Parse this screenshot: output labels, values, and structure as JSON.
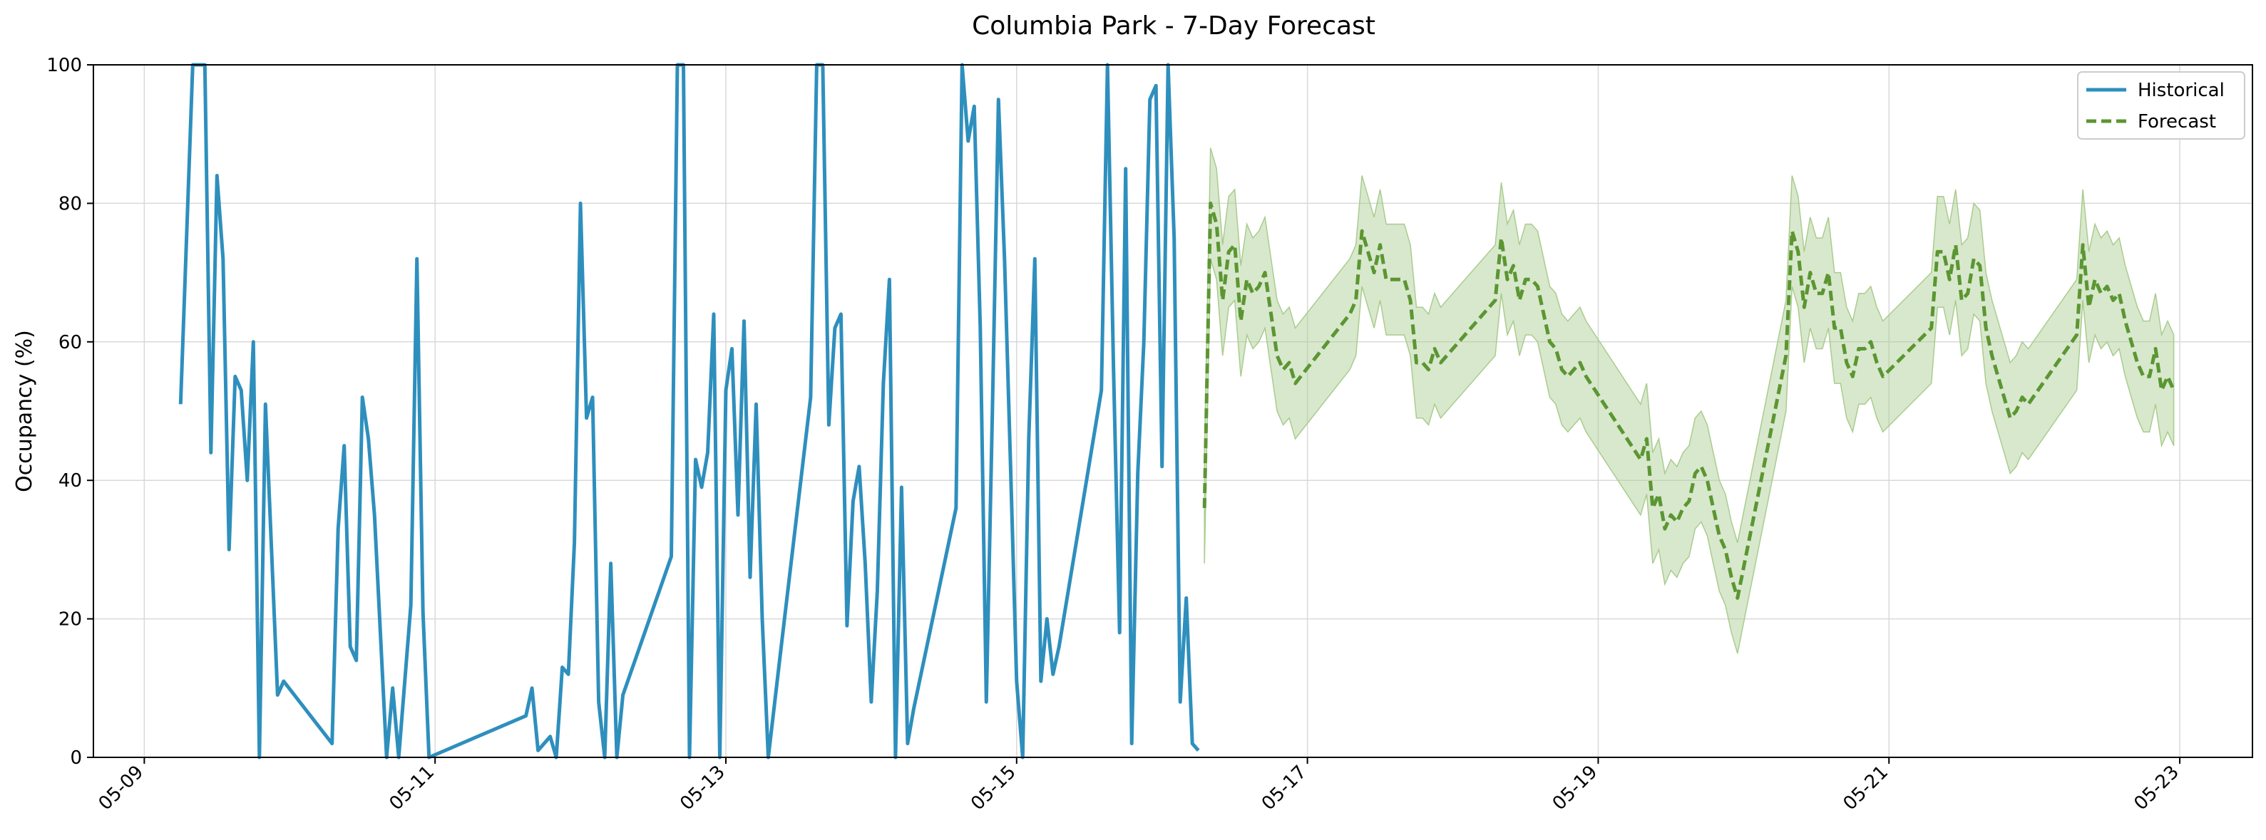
{
  "chart_data": {
    "type": "line",
    "title": "Columbia Park - 7-Day Forecast",
    "xlabel": "",
    "ylabel": "Occupancy (%)",
    "xlim": [
      "2025-05-08T15:36",
      "2025-05-23T12:00"
    ],
    "ylim": [
      0,
      100
    ],
    "grid": true,
    "legend_position": "top-right",
    "x_ticks": [
      "05-09",
      "05-11",
      "05-13",
      "05-15",
      "05-17",
      "05-19",
      "05-21",
      "05-23"
    ],
    "x_tick_dates": [
      "2025-05-09",
      "2025-05-11",
      "2025-05-13",
      "2025-05-15",
      "2025-05-17",
      "2025-05-19",
      "2025-05-21",
      "2025-05-23"
    ],
    "y_ticks": [
      0,
      20,
      40,
      60,
      80,
      100
    ],
    "series": [
      {
        "name": "Historical",
        "style": "solid",
        "color": "#2e8fbd",
        "points": [
          [
            "2025-05-09T06:00",
            51
          ],
          [
            "2025-05-09T08:00",
            100
          ],
          [
            "2025-05-09T09:00",
            100
          ],
          [
            "2025-05-09T10:00",
            100
          ],
          [
            "2025-05-09T11:00",
            44
          ],
          [
            "2025-05-09T12:00",
            84
          ],
          [
            "2025-05-09T13:00",
            72
          ],
          [
            "2025-05-09T14:00",
            30
          ],
          [
            "2025-05-09T15:00",
            55
          ],
          [
            "2025-05-09T16:00",
            53
          ],
          [
            "2025-05-09T17:00",
            40
          ],
          [
            "2025-05-09T18:00",
            60
          ],
          [
            "2025-05-09T19:00",
            0
          ],
          [
            "2025-05-09T20:00",
            51
          ],
          [
            "2025-05-09T22:00",
            9
          ],
          [
            "2025-05-09T23:00",
            11
          ],
          [
            "2025-05-10T07:00",
            2
          ],
          [
            "2025-05-10T08:00",
            33
          ],
          [
            "2025-05-10T09:00",
            45
          ],
          [
            "2025-05-10T10:00",
            16
          ],
          [
            "2025-05-10T11:00",
            14
          ],
          [
            "2025-05-10T12:00",
            52
          ],
          [
            "2025-05-10T13:00",
            46
          ],
          [
            "2025-05-10T14:00",
            35
          ],
          [
            "2025-05-10T16:00",
            0
          ],
          [
            "2025-05-10T17:00",
            10
          ],
          [
            "2025-05-10T18:00",
            0
          ],
          [
            "2025-05-10T20:00",
            22
          ],
          [
            "2025-05-10T21:00",
            72
          ],
          [
            "2025-05-10T22:00",
            21
          ],
          [
            "2025-05-10T23:00",
            0
          ],
          [
            "2025-05-11T15:00",
            6
          ],
          [
            "2025-05-11T16:00",
            10
          ],
          [
            "2025-05-11T17:00",
            1
          ],
          [
            "2025-05-11T19:00",
            3
          ],
          [
            "2025-05-11T20:00",
            0
          ],
          [
            "2025-05-11T21:00",
            13
          ],
          [
            "2025-05-11T22:00",
            12
          ],
          [
            "2025-05-11T23:00",
            31
          ],
          [
            "2025-05-12T00:00",
            80
          ],
          [
            "2025-05-12T01:00",
            49
          ],
          [
            "2025-05-12T02:00",
            52
          ],
          [
            "2025-05-12T03:00",
            8
          ],
          [
            "2025-05-12T04:00",
            0
          ],
          [
            "2025-05-12T05:00",
            28
          ],
          [
            "2025-05-12T06:00",
            0
          ],
          [
            "2025-05-12T07:00",
            9
          ],
          [
            "2025-05-12T15:00",
            29
          ],
          [
            "2025-05-12T16:00",
            100
          ],
          [
            "2025-05-12T17:00",
            100
          ],
          [
            "2025-05-12T18:00",
            0
          ],
          [
            "2025-05-12T19:00",
            43
          ],
          [
            "2025-05-12T20:00",
            39
          ],
          [
            "2025-05-12T21:00",
            44
          ],
          [
            "2025-05-12T22:00",
            64
          ],
          [
            "2025-05-12T23:00",
            0
          ],
          [
            "2025-05-13T00:00",
            53
          ],
          [
            "2025-05-13T01:00",
            59
          ],
          [
            "2025-05-13T02:00",
            35
          ],
          [
            "2025-05-13T03:00",
            63
          ],
          [
            "2025-05-13T04:00",
            26
          ],
          [
            "2025-05-13T05:00",
            51
          ],
          [
            "2025-05-13T06:00",
            20
          ],
          [
            "2025-05-13T07:00",
            0
          ],
          [
            "2025-05-13T09:00",
            15
          ],
          [
            "2025-05-13T14:00",
            52
          ],
          [
            "2025-05-13T15:00",
            100
          ],
          [
            "2025-05-13T16:00",
            100
          ],
          [
            "2025-05-13T17:00",
            48
          ],
          [
            "2025-05-13T18:00",
            62
          ],
          [
            "2025-05-13T19:00",
            64
          ],
          [
            "2025-05-13T20:00",
            19
          ],
          [
            "2025-05-13T21:00",
            37
          ],
          [
            "2025-05-13T22:00",
            42
          ],
          [
            "2025-05-13T23:00",
            28
          ],
          [
            "2025-05-14T00:00",
            8
          ],
          [
            "2025-05-14T01:00",
            24
          ],
          [
            "2025-05-14T02:00",
            54
          ],
          [
            "2025-05-14T03:00",
            69
          ],
          [
            "2025-05-14T04:00",
            0
          ],
          [
            "2025-05-14T05:00",
            39
          ],
          [
            "2025-05-14T06:00",
            2
          ],
          [
            "2025-05-14T07:00",
            7
          ],
          [
            "2025-05-14T14:00",
            36
          ],
          [
            "2025-05-14T15:00",
            100
          ],
          [
            "2025-05-14T16:00",
            89
          ],
          [
            "2025-05-14T17:00",
            94
          ],
          [
            "2025-05-14T18:00",
            62
          ],
          [
            "2025-05-14T19:00",
            8
          ],
          [
            "2025-05-14T20:00",
            50
          ],
          [
            "2025-05-14T21:00",
            95
          ],
          [
            "2025-05-14T22:00",
            72
          ],
          [
            "2025-05-14T23:00",
            42
          ],
          [
            "2025-05-15T00:00",
            11
          ],
          [
            "2025-05-15T01:00",
            0
          ],
          [
            "2025-05-15T02:00",
            46
          ],
          [
            "2025-05-15T03:00",
            72
          ],
          [
            "2025-05-15T04:00",
            11
          ],
          [
            "2025-05-15T05:00",
            20
          ],
          [
            "2025-05-15T06:00",
            12
          ],
          [
            "2025-05-15T07:00",
            16
          ],
          [
            "2025-05-15T14:00",
            53
          ],
          [
            "2025-05-15T15:00",
            100
          ],
          [
            "2025-05-15T16:00",
            56
          ],
          [
            "2025-05-15T17:00",
            18
          ],
          [
            "2025-05-15T18:00",
            85
          ],
          [
            "2025-05-15T19:00",
            2
          ],
          [
            "2025-05-15T20:00",
            41
          ],
          [
            "2025-05-15T21:00",
            60
          ],
          [
            "2025-05-15T22:00",
            95
          ],
          [
            "2025-05-15T23:00",
            97
          ],
          [
            "2025-05-16T00:00",
            42
          ],
          [
            "2025-05-16T01:00",
            100
          ],
          [
            "2025-05-16T02:00",
            75
          ],
          [
            "2025-05-16T03:00",
            8
          ],
          [
            "2025-05-16T04:00",
            23
          ],
          [
            "2025-05-16T05:00",
            2
          ],
          [
            "2025-05-16T06:00",
            1
          ]
        ]
      },
      {
        "name": "Forecast",
        "style": "dashed",
        "color": "#5b9632",
        "band_color": "#a9cc8e",
        "points": [
          [
            "2025-05-16T07:00",
            36
          ],
          [
            "2025-05-16T08:00",
            80
          ],
          [
            "2025-05-16T09:00",
            77
          ],
          [
            "2025-05-16T10:00",
            66
          ],
          [
            "2025-05-16T11:00",
            73
          ],
          [
            "2025-05-16T12:00",
            74
          ],
          [
            "2025-05-16T13:00",
            63
          ],
          [
            "2025-05-16T14:00",
            69
          ],
          [
            "2025-05-16T15:00",
            67
          ],
          [
            "2025-05-16T16:00",
            68
          ],
          [
            "2025-05-16T17:00",
            70
          ],
          [
            "2025-05-16T18:00",
            64
          ],
          [
            "2025-05-16T19:00",
            58
          ],
          [
            "2025-05-16T20:00",
            56
          ],
          [
            "2025-05-16T21:00",
            57
          ],
          [
            "2025-05-16T22:00",
            54
          ],
          [
            "2025-05-17T07:00",
            64
          ],
          [
            "2025-05-17T08:00",
            66
          ],
          [
            "2025-05-17T09:00",
            76
          ],
          [
            "2025-05-17T10:00",
            73
          ],
          [
            "2025-05-17T11:00",
            70
          ],
          [
            "2025-05-17T12:00",
            74
          ],
          [
            "2025-05-17T13:00",
            69
          ],
          [
            "2025-05-17T14:00",
            69
          ],
          [
            "2025-05-17T15:00",
            69
          ],
          [
            "2025-05-17T16:00",
            69
          ],
          [
            "2025-05-17T17:00",
            66
          ],
          [
            "2025-05-17T18:00",
            57
          ],
          [
            "2025-05-17T19:00",
            57
          ],
          [
            "2025-05-17T20:00",
            56
          ],
          [
            "2025-05-17T21:00",
            59
          ],
          [
            "2025-05-17T22:00",
            57
          ],
          [
            "2025-05-18T07:00",
            66
          ],
          [
            "2025-05-18T08:00",
            75
          ],
          [
            "2025-05-18T09:00",
            69
          ],
          [
            "2025-05-18T10:00",
            71
          ],
          [
            "2025-05-18T11:00",
            66
          ],
          [
            "2025-05-18T12:00",
            69
          ],
          [
            "2025-05-18T13:00",
            69
          ],
          [
            "2025-05-18T14:00",
            68
          ],
          [
            "2025-05-18T15:00",
            64
          ],
          [
            "2025-05-18T16:00",
            60
          ],
          [
            "2025-05-18T17:00",
            59
          ],
          [
            "2025-05-18T18:00",
            56
          ],
          [
            "2025-05-18T19:00",
            55
          ],
          [
            "2025-05-18T20:00",
            56
          ],
          [
            "2025-05-18T21:00",
            57
          ],
          [
            "2025-05-18T22:00",
            55
          ],
          [
            "2025-05-19T07:00",
            43
          ],
          [
            "2025-05-19T08:00",
            46
          ],
          [
            "2025-05-19T09:00",
            36
          ],
          [
            "2025-05-19T10:00",
            38
          ],
          [
            "2025-05-19T11:00",
            33
          ],
          [
            "2025-05-19T12:00",
            35
          ],
          [
            "2025-05-19T13:00",
            34
          ],
          [
            "2025-05-19T14:00",
            36
          ],
          [
            "2025-05-19T15:00",
            37
          ],
          [
            "2025-05-19T16:00",
            41
          ],
          [
            "2025-05-19T17:00",
            42
          ],
          [
            "2025-05-19T18:00",
            40
          ],
          [
            "2025-05-19T19:00",
            36
          ],
          [
            "2025-05-19T20:00",
            32
          ],
          [
            "2025-05-19T21:00",
            30
          ],
          [
            "2025-05-19T22:00",
            26
          ],
          [
            "2025-05-19T23:00",
            23
          ],
          [
            "2025-05-20T07:00",
            58
          ],
          [
            "2025-05-20T08:00",
            76
          ],
          [
            "2025-05-20T09:00",
            73
          ],
          [
            "2025-05-20T10:00",
            65
          ],
          [
            "2025-05-20T11:00",
            70
          ],
          [
            "2025-05-20T12:00",
            67
          ],
          [
            "2025-05-20T13:00",
            67
          ],
          [
            "2025-05-20T14:00",
            70
          ],
          [
            "2025-05-20T15:00",
            62
          ],
          [
            "2025-05-20T16:00",
            62
          ],
          [
            "2025-05-20T17:00",
            57
          ],
          [
            "2025-05-20T18:00",
            55
          ],
          [
            "2025-05-20T19:00",
            59
          ],
          [
            "2025-05-20T20:00",
            59
          ],
          [
            "2025-05-20T21:00",
            60
          ],
          [
            "2025-05-20T22:00",
            57
          ],
          [
            "2025-05-20T23:00",
            55
          ],
          [
            "2025-05-21T07:00",
            62
          ],
          [
            "2025-05-21T08:00",
            73
          ],
          [
            "2025-05-21T09:00",
            73
          ],
          [
            "2025-05-21T10:00",
            69
          ],
          [
            "2025-05-21T11:00",
            74
          ],
          [
            "2025-05-21T12:00",
            66
          ],
          [
            "2025-05-21T13:00",
            67
          ],
          [
            "2025-05-21T14:00",
            72
          ],
          [
            "2025-05-21T15:00",
            71
          ],
          [
            "2025-05-21T16:00",
            62
          ],
          [
            "2025-05-21T17:00",
            58
          ],
          [
            "2025-05-21T18:00",
            55
          ],
          [
            "2025-05-21T19:00",
            52
          ],
          [
            "2025-05-21T20:00",
            49
          ],
          [
            "2025-05-21T21:00",
            50
          ],
          [
            "2025-05-21T22:00",
            52
          ],
          [
            "2025-05-21T23:00",
            51
          ],
          [
            "2025-05-22T07:00",
            61
          ],
          [
            "2025-05-22T08:00",
            74
          ],
          [
            "2025-05-22T09:00",
            65
          ],
          [
            "2025-05-22T10:00",
            69
          ],
          [
            "2025-05-22T11:00",
            67
          ],
          [
            "2025-05-22T12:00",
            68
          ],
          [
            "2025-05-22T13:00",
            66
          ],
          [
            "2025-05-22T14:00",
            67
          ],
          [
            "2025-05-22T15:00",
            63
          ],
          [
            "2025-05-22T16:00",
            60
          ],
          [
            "2025-05-22T17:00",
            57
          ],
          [
            "2025-05-22T18:00",
            55
          ],
          [
            "2025-05-22T19:00",
            55
          ],
          [
            "2025-05-22T20:00",
            59
          ],
          [
            "2025-05-22T21:00",
            53
          ],
          [
            "2025-05-22T22:00",
            55
          ],
          [
            "2025-05-22T23:00",
            53
          ]
        ],
        "band_half_width": 8
      }
    ]
  }
}
